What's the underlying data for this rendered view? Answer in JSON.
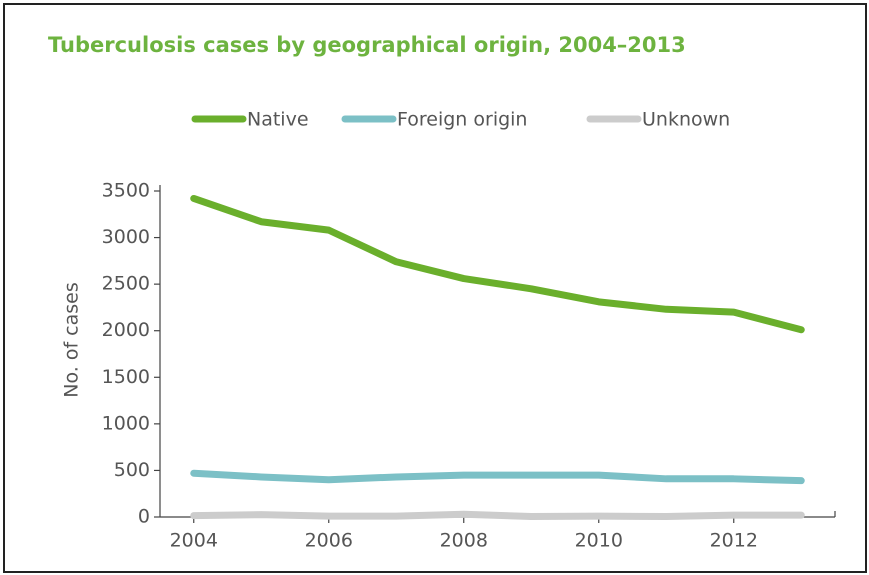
{
  "chart_data": {
    "type": "line",
    "title": "Tuberculosis cases by geographical origin, 2004–2013",
    "y_label": "No. of cases",
    "x": [
      2004,
      2005,
      2006,
      2007,
      2008,
      2009,
      2010,
      2011,
      2012,
      2013
    ],
    "series": [
      {
        "name": "Native",
        "color": "#6aaf2c",
        "values": [
          3420,
          3170,
          3080,
          2740,
          2560,
          2450,
          2310,
          2230,
          2200,
          2010
        ]
      },
      {
        "name": "Foreign origin",
        "color": "#7cc0c6",
        "values": [
          470,
          430,
          400,
          430,
          450,
          450,
          450,
          410,
          410,
          390
        ]
      },
      {
        "name": "Unknown",
        "color": "#cccccc",
        "values": [
          15,
          25,
          10,
          10,
          30,
          5,
          10,
          5,
          20,
          20
        ]
      }
    ],
    "xlim": [
      2003.5,
      2013.5
    ],
    "xticks": [
      2004,
      2006,
      2008,
      2010,
      2012
    ],
    "ylim": [
      0,
      3500
    ],
    "yticks": [
      0,
      500,
      1000,
      1500,
      2000,
      2500,
      3000,
      3500
    ],
    "legend": "top"
  }
}
